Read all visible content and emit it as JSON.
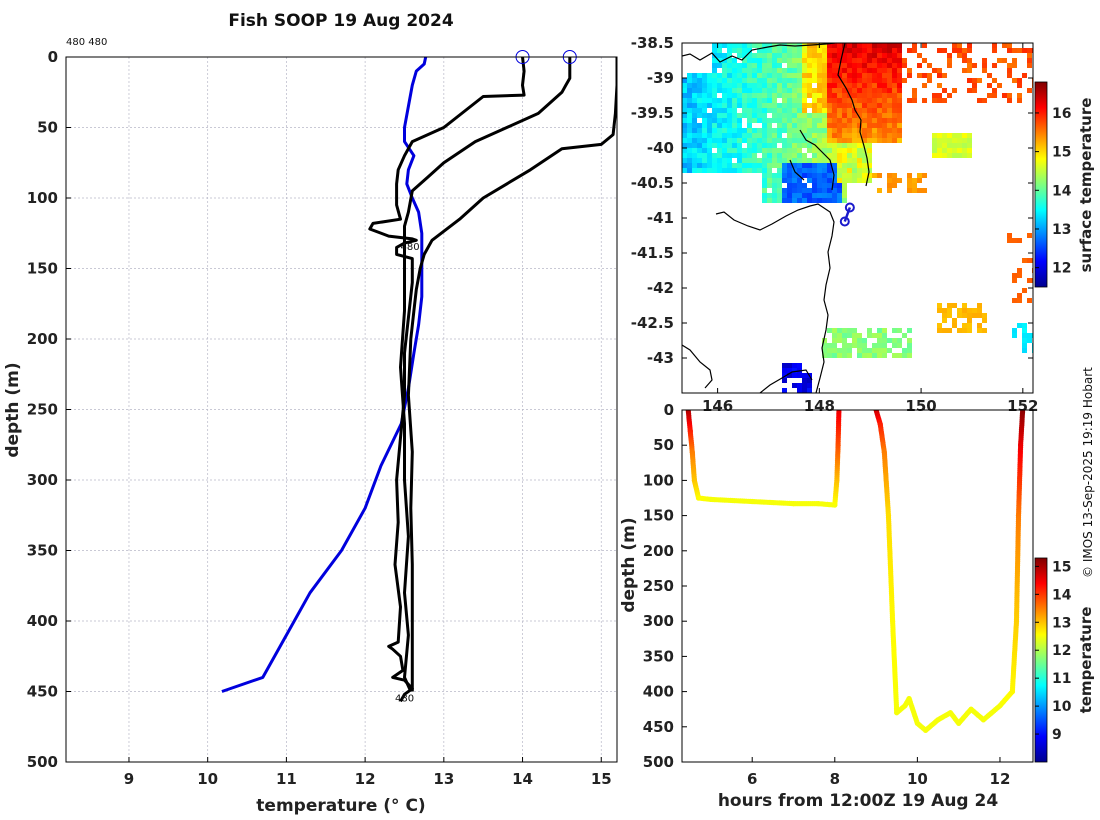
{
  "figure": {
    "title": "Fish SOOP 19 Aug 2024",
    "corner_note": "480 480",
    "credit": "© IMOS 13-Sep-2025 19:19 Hobart"
  },
  "colors": {
    "profile_main": "#000000",
    "profile_reference": "#0000dd",
    "grid": "#b8b8c8",
    "coast": "#000000",
    "track": "#1a1acc"
  },
  "chart_data": [
    {
      "id": "profile",
      "type": "line",
      "title": "Fish SOOP 19 Aug 2024",
      "xlabel": "temperature (° C)",
      "ylabel": "depth (m)",
      "xlim": [
        8.2,
        15.2
      ],
      "ylim": [
        500,
        0
      ],
      "xticks": [
        9,
        10,
        11,
        12,
        13,
        14,
        15
      ],
      "yticks": [
        0,
        50,
        100,
        150,
        200,
        250,
        300,
        350,
        400,
        450,
        500
      ],
      "grid": true,
      "labels": [
        {
          "text": "480",
          "x": 12.45,
          "y": 137
        },
        {
          "text": "480",
          "x": 12.38,
          "y": 457
        }
      ],
      "start_markers": [
        {
          "x": 14.0,
          "y": 0
        },
        {
          "x": 14.6,
          "y": 0
        }
      ],
      "series": [
        {
          "name": "reference",
          "color": "#0000dd",
          "points": [
            [
              12.77,
              0
            ],
            [
              12.75,
              5
            ],
            [
              12.65,
              10
            ],
            [
              12.6,
              20
            ],
            [
              12.55,
              35
            ],
            [
              12.5,
              50
            ],
            [
              12.5,
              60
            ],
            [
              12.62,
              70
            ],
            [
              12.55,
              80
            ],
            [
              12.53,
              90
            ],
            [
              12.6,
              100
            ],
            [
              12.68,
              110
            ],
            [
              12.72,
              125
            ],
            [
              12.72,
              140
            ],
            [
              12.72,
              170
            ],
            [
              12.68,
              190
            ],
            [
              12.62,
              210
            ],
            [
              12.55,
              235
            ],
            [
              12.46,
              260
            ],
            [
              12.2,
              290
            ],
            [
              12.0,
              320
            ],
            [
              11.7,
              350
            ],
            [
              11.3,
              380
            ],
            [
              11.0,
              410
            ],
            [
              10.7,
              440
            ],
            [
              10.18,
              450
            ]
          ]
        },
        {
          "name": "profile-1",
          "color": "#000000",
          "points": [
            [
              14.0,
              0
            ],
            [
              14.02,
              10
            ],
            [
              14.0,
              20
            ],
            [
              14.02,
              27
            ],
            [
              13.5,
              28
            ],
            [
              13.0,
              50
            ],
            [
              12.6,
              60
            ],
            [
              12.5,
              70
            ],
            [
              12.42,
              80
            ],
            [
              12.4,
              90
            ],
            [
              12.4,
              105
            ],
            [
              12.45,
              115
            ],
            [
              12.1,
              118
            ],
            [
              12.06,
              122
            ],
            [
              12.3,
              127
            ],
            [
              12.6,
              129
            ],
            [
              12.65,
              130
            ],
            [
              12.5,
              132
            ],
            [
              12.4,
              135
            ],
            [
              12.4,
              140
            ],
            [
              12.6,
              143
            ],
            [
              12.6,
              160
            ],
            [
              12.55,
              185
            ],
            [
              12.5,
              210
            ],
            [
              12.5,
              240
            ],
            [
              12.45,
              270
            ],
            [
              12.4,
              300
            ],
            [
              12.42,
              330
            ],
            [
              12.38,
              360
            ],
            [
              12.45,
              390
            ],
            [
              12.42,
              415
            ],
            [
              12.3,
              418
            ],
            [
              12.35,
              420
            ],
            [
              12.45,
              425
            ],
            [
              12.48,
              435
            ],
            [
              12.35,
              440
            ],
            [
              12.5,
              442
            ],
            [
              12.6,
              448
            ],
            [
              12.5,
              452
            ],
            [
              12.45,
              457
            ]
          ]
        },
        {
          "name": "profile-2",
          "color": "#000000",
          "points": [
            [
              14.6,
              0
            ],
            [
              14.6,
              15
            ],
            [
              14.55,
              20
            ],
            [
              14.5,
              25
            ],
            [
              14.2,
              40
            ],
            [
              13.8,
              50
            ],
            [
              13.4,
              60
            ],
            [
              13.0,
              75
            ],
            [
              12.8,
              85
            ],
            [
              12.6,
              95
            ],
            [
              12.55,
              110
            ],
            [
              12.5,
              120
            ],
            [
              12.5,
              135
            ],
            [
              12.5,
              150
            ],
            [
              12.5,
              180
            ],
            [
              12.45,
              220
            ],
            [
              12.5,
              260
            ],
            [
              12.5,
              300
            ],
            [
              12.55,
              340
            ],
            [
              12.5,
              380
            ],
            [
              12.55,
              410
            ],
            [
              12.5,
              440
            ],
            [
              12.58,
              450
            ]
          ]
        },
        {
          "name": "profile-3",
          "color": "#000000",
          "points": [
            [
              15.2,
              0
            ],
            [
              15.2,
              20
            ],
            [
              15.18,
              40
            ],
            [
              15.15,
              55
            ],
            [
              15.0,
              62
            ],
            [
              14.5,
              65
            ],
            [
              14.1,
              80
            ],
            [
              13.8,
              90
            ],
            [
              13.5,
              100
            ],
            [
              13.2,
              115
            ],
            [
              12.85,
              130
            ],
            [
              12.75,
              140
            ],
            [
              12.7,
              150
            ],
            [
              12.65,
              165
            ],
            [
              12.62,
              180
            ],
            [
              12.58,
              200
            ],
            [
              12.55,
              240
            ],
            [
              12.6,
              280
            ],
            [
              12.58,
              320
            ],
            [
              12.6,
              360
            ],
            [
              12.6,
              400
            ],
            [
              12.6,
              430
            ],
            [
              12.6,
              450
            ]
          ]
        }
      ]
    },
    {
      "id": "sst_map",
      "type": "heatmap",
      "colorbar_label": "surface temperature",
      "clim": [
        11.5,
        16.8
      ],
      "colorbar_ticks": [
        12,
        13,
        14,
        15,
        16
      ],
      "xlim": [
        145.3,
        152.2
      ],
      "ylim": [
        -43.5,
        -38.5
      ],
      "xticks": [
        146,
        148,
        150,
        152
      ],
      "yticks": [
        -38.5,
        -39,
        -39.5,
        -40,
        -40.5,
        -41,
        -41.5,
        -42,
        -42.5,
        -43
      ],
      "ytick_labels": [
        "-38.5",
        "-39",
        "-39.5",
        "-40",
        "-40.5",
        "-41",
        "-41.5",
        "-42",
        "-42.5",
        "-43"
      ],
      "track": [
        [
          148.6,
          -40.85
        ],
        [
          148.5,
          -41.05
        ]
      ]
    },
    {
      "id": "depth_time",
      "type": "scatter",
      "xlabel": "hours from 12:00Z 19 Aug 24",
      "ylabel": "depth (m)",
      "xlim": [
        4.3,
        12.8
      ],
      "ylim": [
        500,
        0
      ],
      "xticks": [
        6,
        8,
        10,
        12
      ],
      "yticks": [
        0,
        50,
        100,
        150,
        200,
        250,
        300,
        350,
        400,
        450,
        500
      ],
      "colorbar_label": "temperature",
      "clim": [
        8,
        15.3
      ],
      "colorbar_ticks": [
        9,
        10,
        11,
        12,
        13,
        14,
        15
      ],
      "segments": [
        [
          [
            4.45,
            0,
            15
          ],
          [
            4.5,
            30,
            14.2
          ],
          [
            4.55,
            60,
            13.5
          ],
          [
            4.6,
            100,
            13
          ],
          [
            4.7,
            125,
            12.6
          ],
          [
            5.0,
            127,
            12.5
          ],
          [
            6.0,
            130,
            12.5
          ],
          [
            7.0,
            133,
            12.5
          ],
          [
            7.6,
            133,
            12.5
          ],
          [
            8.0,
            135,
            12.5
          ],
          [
            8.05,
            100,
            13
          ],
          [
            8.08,
            50,
            13.8
          ],
          [
            8.1,
            0,
            14.5
          ]
        ],
        [
          [
            9.0,
            0,
            14.8
          ],
          [
            9.1,
            20,
            14.2
          ],
          [
            9.2,
            60,
            13.5
          ],
          [
            9.3,
            150,
            12.8
          ],
          [
            9.4,
            300,
            12.6
          ],
          [
            9.5,
            430,
            12.5
          ],
          [
            9.7,
            420,
            12.5
          ],
          [
            9.8,
            410,
            12.5
          ],
          [
            10.0,
            445,
            12.5
          ],
          [
            10.2,
            455,
            12.5
          ],
          [
            10.5,
            440,
            12.5
          ],
          [
            10.8,
            430,
            12.5
          ],
          [
            11.0,
            445,
            12.5
          ],
          [
            11.3,
            425,
            12.5
          ],
          [
            11.6,
            440,
            12.5
          ],
          [
            12.0,
            420,
            12.5
          ],
          [
            12.3,
            400,
            12.6
          ],
          [
            12.4,
            300,
            12.9
          ],
          [
            12.45,
            150,
            13.5
          ],
          [
            12.5,
            50,
            14.5
          ],
          [
            12.55,
            0,
            15.2
          ]
        ]
      ]
    }
  ]
}
